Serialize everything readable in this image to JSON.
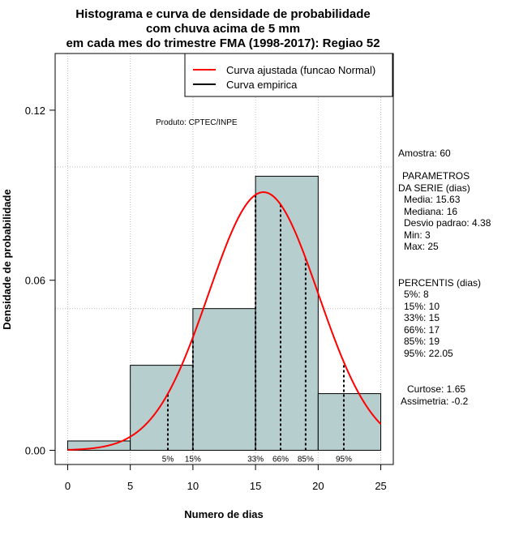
{
  "chart_data": {
    "type": "bar",
    "title": [
      "Histograma e curva de densidade de probabilidade",
      "com chuva acima de 5 mm",
      "em cada mes do trimestre FMA (1998-2017): Regiao 52"
    ],
    "xlabel": "Numero de dias",
    "ylabel": "Densidade de probabilidade",
    "xlim": [
      -1,
      26
    ],
    "ylim": [
      -0.005,
      0.14
    ],
    "x_ticks": [
      0,
      5,
      10,
      15,
      20,
      25
    ],
    "y_ticks": [
      0.0,
      0.06,
      0.12
    ],
    "y_tick_labels": [
      "0.00",
      "0.06",
      "0.12"
    ],
    "grid": true,
    "grid_y": [
      0.05,
      0.1
    ],
    "bin_edges": [
      0,
      5,
      10,
      15,
      20,
      25
    ],
    "values": [
      0.0033,
      0.03,
      0.05,
      0.0967,
      0.02
    ],
    "bar_color": "#b6cece",
    "normal_curve": {
      "name": "Curva ajustada (funcao Normal)",
      "mean": 15.63,
      "sd": 4.38,
      "color": "#ff0000"
    },
    "empirical_curve": {
      "name": "Curva empirica",
      "color": "#000000"
    },
    "percentile_lines": [
      {
        "label": "5%",
        "x": 8
      },
      {
        "label": "15%",
        "x": 10
      },
      {
        "label": "33%",
        "x": 15
      },
      {
        "label": "66%",
        "x": 17
      },
      {
        "label": "85%",
        "x": 19
      },
      {
        "label": "95%",
        "x": 22.05
      }
    ],
    "legend": [
      "Curva ajustada (funcao Normal)",
      "Curva empirica"
    ],
    "legend_position": "top-right",
    "annotation": "Produto: CPTEC/INPE"
  },
  "side_panel": {
    "sample": "Amostra: 60",
    "params_title_1": "PARAMETROS",
    "params_title_2": "DA SERIE (dias)",
    "media": "Media: 15.63",
    "mediana": "Mediana: 16",
    "desvio": "Desvio padrao: 4.38",
    "min": "Min: 3",
    "max": "Max: 25",
    "percentis_title": "PERCENTIS (dias)",
    "p5": "5%: 8",
    "p15": "15%: 10",
    "p33": "33%: 15",
    "p66": "66%: 17",
    "p85": "85%: 19",
    "p95": "95%: 22.05",
    "curtose": "Curtose: 1.65",
    "assimetria": "Assimetria: -0.2"
  }
}
